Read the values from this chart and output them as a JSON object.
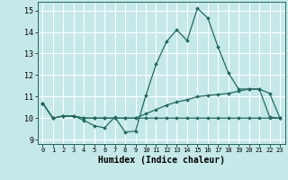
{
  "xlabel": "Humidex (Indice chaleur)",
  "xlim": [
    -0.5,
    23.5
  ],
  "ylim": [
    8.8,
    15.4
  ],
  "yticks": [
    9,
    10,
    11,
    12,
    13,
    14,
    15
  ],
  "xticks": [
    0,
    1,
    2,
    3,
    4,
    5,
    6,
    7,
    8,
    9,
    10,
    11,
    12,
    13,
    14,
    15,
    16,
    17,
    18,
    19,
    20,
    21,
    22,
    23
  ],
  "bg_color": "#c5e8e8",
  "grid_color": "#ffffff",
  "line_color": "#1e6b5e",
  "series1": [
    10.7,
    10.0,
    10.1,
    10.1,
    9.9,
    9.65,
    9.55,
    10.05,
    9.35,
    9.4,
    11.05,
    12.5,
    13.55,
    14.1,
    13.6,
    15.1,
    14.65,
    13.3,
    12.1,
    11.35,
    11.35,
    11.35,
    10.05,
    10.0
  ],
  "series2": [
    10.7,
    10.0,
    10.1,
    10.1,
    10.0,
    10.0,
    10.0,
    10.0,
    10.0,
    10.0,
    10.2,
    10.4,
    10.6,
    10.75,
    10.85,
    11.0,
    11.05,
    11.1,
    11.15,
    11.25,
    11.35,
    11.35,
    11.15,
    10.0
  ],
  "series3": [
    10.7,
    10.0,
    10.1,
    10.1,
    10.0,
    10.0,
    10.0,
    10.0,
    10.0,
    10.0,
    10.0,
    10.0,
    10.0,
    10.0,
    10.0,
    10.0,
    10.0,
    10.0,
    10.0,
    10.0,
    10.0,
    10.0,
    10.0,
    10.0
  ]
}
